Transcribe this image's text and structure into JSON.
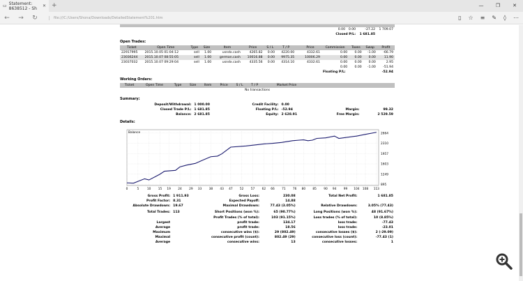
{
  "browser": {
    "tab_title": "Statement: 8638512 - Sh",
    "url": "file:///C:/Users/Shona/Downloads/DetailedStatement%201.htm"
  },
  "top": {
    "row": [
      "0.00",
      "0.00",
      "-27.22",
      "1 709.07"
    ],
    "closed_label": "Closed P/L:",
    "closed_value": "1 681.85"
  },
  "open_trades": {
    "title": "Open Trades:",
    "headers": [
      "Ticket",
      "Open Time",
      "Type",
      "Size",
      "Item",
      "Price",
      "S / L",
      "T / P",
      "",
      "Price",
      "Commission",
      "Taxes",
      "Swap",
      "Profit"
    ],
    "rows": [
      [
        "22917995",
        "2015.10.05 01:04:12",
        "sell",
        "1.00",
        "usndx.cash",
        "4265.82",
        "0.00",
        "4220.00",
        "",
        "4332.61",
        "0.00",
        "0.00",
        "-1.00",
        "-66.79"
      ],
      [
        "23036244",
        "2015.10.07 08:55:05",
        "sell",
        "1.00",
        "german.cash",
        "10016.88",
        "0.00",
        "9975.35",
        "",
        "10006.29",
        "0.00",
        "0.00",
        "0.00",
        "11.90"
      ],
      [
        "23037032",
        "2015.10.07 09:29:04",
        "sell",
        "1.00",
        "usndx.cash",
        "4335.56",
        "0.00",
        "4314.10",
        "",
        "4332.61",
        "0.00",
        "0.00",
        "0.00",
        "2.95"
      ]
    ],
    "totals": [
      "0.00",
      "0.00",
      "-1.00",
      "-51.94"
    ],
    "floating_label": "Floating P/L:",
    "floating_value": "-52.94"
  },
  "working_orders": {
    "title": "Working Orders:",
    "headers": [
      "Ticket",
      "Open Time",
      "Type",
      "Size",
      "Item",
      "Price",
      "S / L",
      "T / P",
      "Market Price",
      ""
    ],
    "empty": "No transactions"
  },
  "summary": {
    "title": "Summary:",
    "rows": [
      [
        "Deposit/Withdrawal:",
        "1 000.00",
        "Credit Facility:",
        "0.00",
        "",
        ""
      ],
      [
        "Closed Trade P/L:",
        "1 681.85",
        "Floating P/L:",
        "-52.94",
        "Margin:",
        "99.32"
      ],
      [
        "Balance:",
        "2 681.85",
        "Equity:",
        "2 628.91",
        "Free Margin:",
        "2 529.59"
      ]
    ]
  },
  "details": {
    "title": "Details:"
  },
  "chart_data": {
    "type": "line",
    "title": "Balance",
    "series": [
      {
        "name": "Balance",
        "x": [
          0,
          3,
          5,
          8,
          10,
          13,
          15,
          17,
          22,
          24,
          27,
          31,
          34,
          38,
          41,
          43,
          47,
          54,
          62,
          66,
          70,
          75,
          78,
          80,
          82,
          84,
          86,
          90,
          94,
          96,
          100,
          104,
          108,
          113
        ],
        "values": [
          950,
          940,
          1000,
          1090,
          1050,
          1170,
          1250,
          1350,
          1380,
          1500,
          1560,
          1620,
          1720,
          1850,
          1870,
          1950,
          2180,
          2220,
          2290,
          2310,
          2340,
          2400,
          2420,
          2430,
          2400,
          2420,
          2480,
          2500,
          2560,
          2480,
          2520,
          2560,
          2620,
          2690
        ]
      }
    ],
    "xticks": [
      "0",
      "5",
      "10",
      "15",
      "19",
      "24",
      "29",
      "33",
      "38",
      "43",
      "47",
      "52",
      "57",
      "62",
      "66",
      "71",
      "76",
      "80",
      "85",
      "90",
      "94",
      "99",
      "104",
      "108",
      "113"
    ],
    "xlim": [
      0,
      114
    ],
    "yticks": [
      "895",
      "1249",
      "1603",
      "1957",
      "2310",
      "2664"
    ],
    "ylim": [
      860,
      2780
    ]
  },
  "stats": [
    [
      "Gross Profit:",
      "1 911.93",
      "Gross Loss:",
      "230.08",
      "Total Net Profit:",
      "1 681.85"
    ],
    [
      "Profit Factor:",
      "8.31",
      "Expected Payoff:",
      "14.88",
      "",
      ""
    ],
    [
      "Absolute Drawdown:",
      "19.67",
      "Maximal Drawdown:",
      "77.43 (3.05%)",
      "Relative Drawdown:",
      "3.05% (77.43)"
    ],
    [
      "Total Trades:",
      "113",
      "Short Positions (won %):",
      "65 (90.77%)",
      "Long Positions (won %):",
      "48 (91.67%)"
    ],
    [
      "",
      "",
      "Profit Trades (% of total):",
      "103 (91.15%)",
      "Loss trades (% of total):",
      "10 (8.85%)"
    ],
    [
      "Largest",
      "",
      "profit trade:",
      "134.17",
      "loss trade:",
      "-77.43"
    ],
    [
      "Average",
      "",
      "profit trade:",
      "18.56",
      "loss trade:",
      "-23.01"
    ],
    [
      "Maximum",
      "",
      "consecutive wins ($):",
      "29 (802.49)",
      "consecutive losses ($):",
      "2 (-29.09)"
    ],
    [
      "Maximal",
      "",
      "consecutive profit (count):",
      "802.49 (29)",
      "consecutive loss (count):",
      "-77.43 (1)"
    ],
    [
      "Average",
      "",
      "consecutive wins:",
      "13",
      "consecutive losses:",
      "1"
    ]
  ]
}
